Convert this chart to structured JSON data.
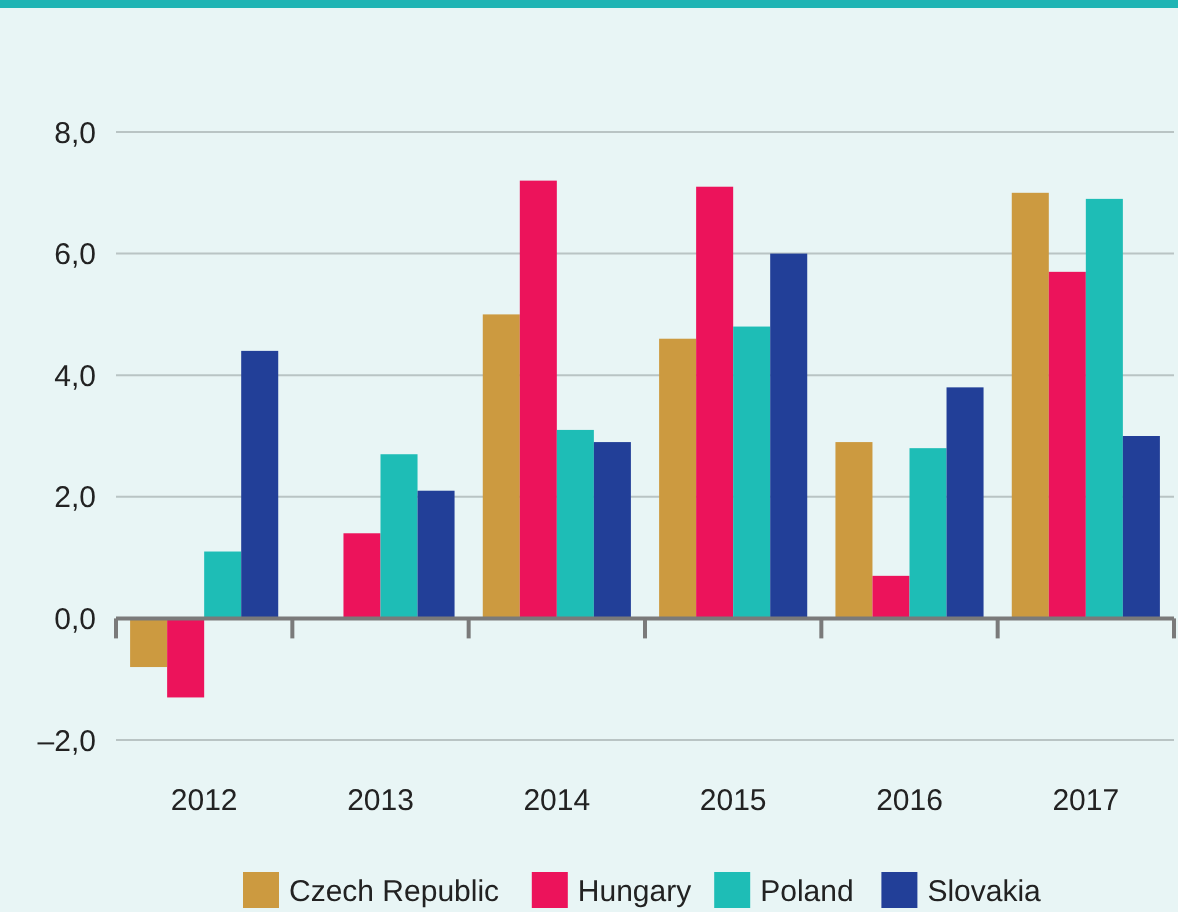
{
  "chart_data": {
    "type": "bar",
    "categories": [
      "2012",
      "2013",
      "2014",
      "2015",
      "2016",
      "2017"
    ],
    "series": [
      {
        "name": "Czech Republic",
        "color": "#cc9a40",
        "values": [
          -0.8,
          0,
          5.0,
          4.6,
          2.9,
          7.0
        ]
      },
      {
        "name": "Hungary",
        "color": "#ec135b",
        "values": [
          -1.3,
          1.4,
          7.2,
          7.1,
          0.7,
          5.7
        ]
      },
      {
        "name": "Poland",
        "color": "#1ebdb6",
        "values": [
          1.1,
          2.7,
          3.1,
          4.8,
          2.8,
          6.9
        ]
      },
      {
        "name": "Slovakia",
        "color": "#223f98",
        "values": [
          4.4,
          2.1,
          2.9,
          6.0,
          3.8,
          3.0
        ]
      }
    ],
    "ylim": [
      -2,
      8
    ],
    "yticks": [
      {
        "value": -2,
        "label": "–2,0"
      },
      {
        "value": 0,
        "label": "0,0"
      },
      {
        "value": 2,
        "label": "2,0"
      },
      {
        "value": 4,
        "label": "4,0"
      },
      {
        "value": 6,
        "label": "6,0"
      },
      {
        "value": 8,
        "label": "8,0"
      }
    ],
    "grid": "y",
    "legend": "bottom"
  }
}
